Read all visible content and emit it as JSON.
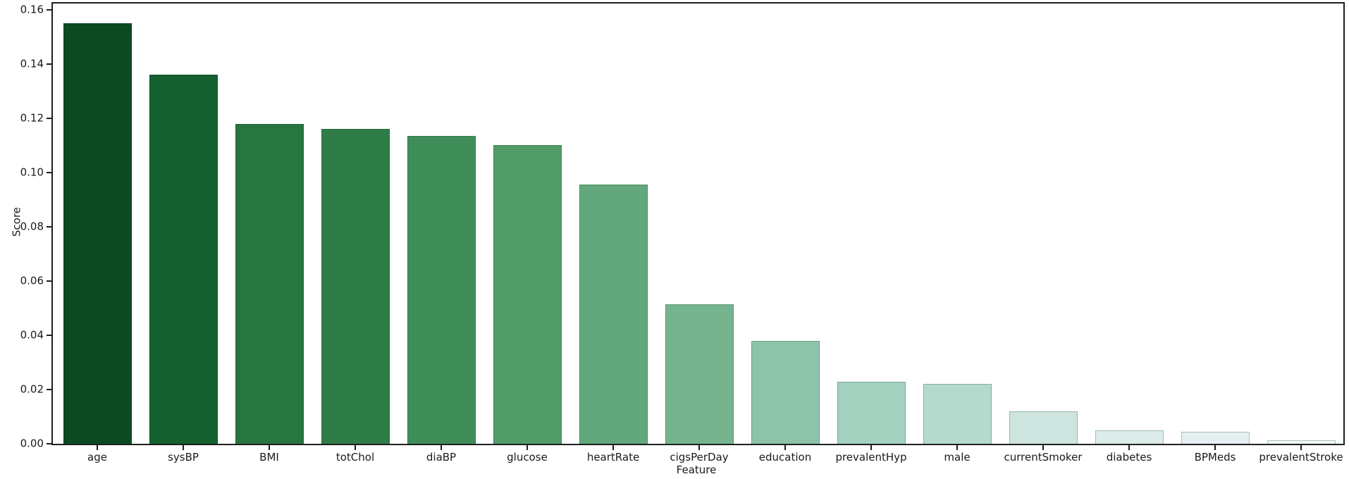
{
  "chart_data": {
    "type": "bar",
    "title": "",
    "xlabel": "Feature",
    "ylabel": "Score",
    "categories": [
      "age",
      "sysBP",
      "BMI",
      "totChol",
      "diaBP",
      "glucose",
      "heartRate",
      "cigsPerDay",
      "education",
      "prevalentHyp",
      "male",
      "currentSmoker",
      "diabetes",
      "BPMeds",
      "prevalentStroke"
    ],
    "values": [
      0.155,
      0.1362,
      0.1178,
      0.116,
      0.1135,
      0.11,
      0.0955,
      0.0515,
      0.038,
      0.0228,
      0.0222,
      0.0119,
      0.0049,
      0.0044,
      0.0012
    ],
    "bar_colors": [
      "#0c4a24",
      "#14602f",
      "#27753f",
      "#2f7d46",
      "#3f8e59",
      "#529c69",
      "#63a87c",
      "#76b490",
      "#8cc3aa",
      "#a3d1c0",
      "#b3dacd",
      "#cde5de",
      "#dcecea",
      "#e5f0f3",
      "#eff6f8"
    ],
    "ylim": [
      0,
      0.1623
    ],
    "yticks": [
      0,
      0.02,
      0.04,
      0.06,
      0.08,
      0.1,
      0.12,
      0.14,
      0.16
    ],
    "ytick_labels": [
      "0.00",
      "0.02",
      "0.04",
      "0.06",
      "0.08",
      "0.10",
      "0.12",
      "0.14",
      "0.16"
    ],
    "grid": false,
    "legend": "none",
    "axis_color": "#1f1f1f",
    "text_color": "#1a1a1a",
    "background": "#ffffff"
  }
}
